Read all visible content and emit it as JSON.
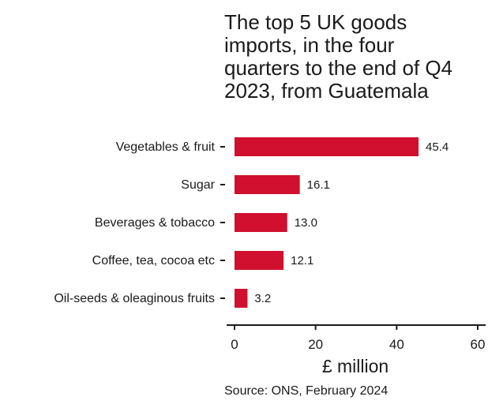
{
  "chart_data": {
    "type": "bar",
    "orientation": "horizontal",
    "title_lines": [
      "The top 5 UK goods",
      "imports, in the four",
      "quarters to the end of Q4",
      "2023, from Guatemala"
    ],
    "categories": [
      "Vegetables & fruit",
      "Sugar",
      "Beverages & tobacco",
      "Coffee, tea, cocoa etc",
      "Oil-seeds & oleaginous fruits"
    ],
    "values": [
      45.4,
      16.1,
      13.0,
      12.1,
      3.2
    ],
    "value_labels": [
      "45.4",
      "16.1",
      "13.0",
      "12.1",
      "3.2"
    ],
    "xlabel": "£ million",
    "xlim": [
      0,
      60
    ],
    "xticks": [
      0,
      20,
      40,
      60
    ],
    "grid": false,
    "bar_color": "#d0102e",
    "source": "Source: ONS, February 2024"
  }
}
